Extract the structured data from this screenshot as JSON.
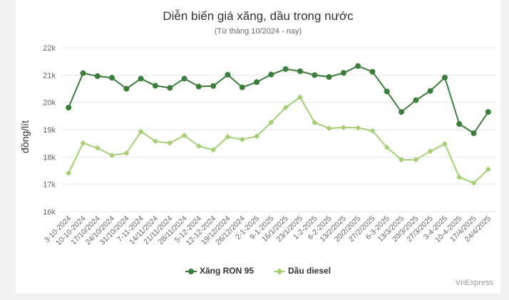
{
  "chart_data": {
    "type": "line",
    "title": "Diễn biến giá xăng, dầu trong nước",
    "subtitle": "(Từ tháng 10/2024 - nay)",
    "ylabel": "đồng/lít",
    "ylim": [
      16000,
      22000
    ],
    "yticks": [
      "16k",
      "17k",
      "18k",
      "19k",
      "20k",
      "21k",
      "22k"
    ],
    "grid": true,
    "legend_position": "bottom",
    "categories": [
      "3-10-2024",
      "10-10-2024",
      "17/10/2024",
      "24/10/2024",
      "31/10/2024",
      "7-11-2024",
      "14/11/2024",
      "21/11/2024",
      "28/11/2024",
      "5-12-2024",
      "12-12-2024",
      "19/12/2024",
      "26/12/2024",
      "2-1-2025",
      "9-1-2025",
      "16/1/2025",
      "23/1/2025",
      "1-2-2025",
      "6-2-2025",
      "13/2/2025",
      "20/2/2025",
      "27/2/2025",
      "6-3-2025",
      "13/3/2025",
      "20/3/2025",
      "27/3/2025",
      "3-4-2025",
      "10-4-2025",
      "17/4/2025",
      "24/4/2025"
    ],
    "series": [
      {
        "name": "Xăng RON 95",
        "color": "#3c7d3c",
        "values": [
          19810,
          21070,
          20960,
          20900,
          20500,
          20870,
          20610,
          20530,
          20870,
          20580,
          20600,
          21010,
          20550,
          20740,
          21020,
          21220,
          21140,
          21000,
          20930,
          21080,
          21330,
          21120,
          20400,
          19650,
          20080,
          20420,
          20910,
          19210,
          18870,
          19650
        ]
      },
      {
        "name": "Dầu diesel",
        "color": "#a4cf75",
        "values": [
          17410,
          18510,
          18330,
          18060,
          18140,
          18930,
          18580,
          18510,
          18790,
          18400,
          18260,
          18740,
          18640,
          18760,
          19270,
          19810,
          20190,
          19260,
          19050,
          19080,
          19070,
          18960,
          18350,
          17900,
          17900,
          18210,
          18480,
          17260,
          17050,
          17550
        ]
      }
    ]
  },
  "credit": "VnExpress"
}
